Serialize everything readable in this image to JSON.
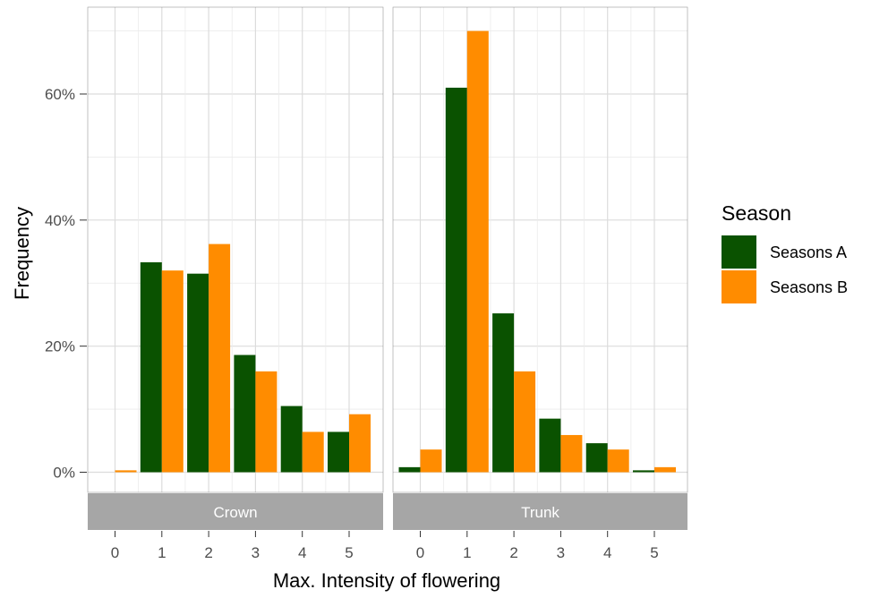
{
  "chart_data": {
    "type": "bar",
    "facets": [
      {
        "name": "Crown",
        "categories": [
          "0",
          "1",
          "2",
          "3",
          "4",
          "5"
        ],
        "series": [
          {
            "name": "Seasons A",
            "values": [
              0.0,
              33.3,
              31.5,
              18.6,
              10.5,
              6.4
            ]
          },
          {
            "name": "Seasons B",
            "values": [
              0.3,
              32.0,
              36.2,
              16.0,
              6.4,
              9.2
            ]
          }
        ]
      },
      {
        "name": "Trunk",
        "categories": [
          "0",
          "1",
          "2",
          "3",
          "4",
          "5"
        ],
        "series": [
          {
            "name": "Seasons A",
            "values": [
              0.8,
              61.0,
              25.2,
              8.5,
              4.6,
              0.3
            ]
          },
          {
            "name": "Seasons B",
            "values": [
              3.6,
              70.0,
              16.0,
              5.9,
              3.6,
              0.8
            ]
          }
        ]
      }
    ],
    "colors": {
      "Seasons A": "#0a5200",
      "Seasons B": "#ff8c00"
    },
    "xlabel": "Max. Intensity of flowering",
    "ylabel": "Frequency",
    "ylim": [
      0,
      72
    ],
    "yticks": [
      0,
      20,
      40,
      60
    ],
    "ytick_labels": [
      "0%",
      "20%",
      "40%",
      "60%"
    ],
    "legend_title": "Season",
    "legend_position": "right",
    "grid": true
  }
}
